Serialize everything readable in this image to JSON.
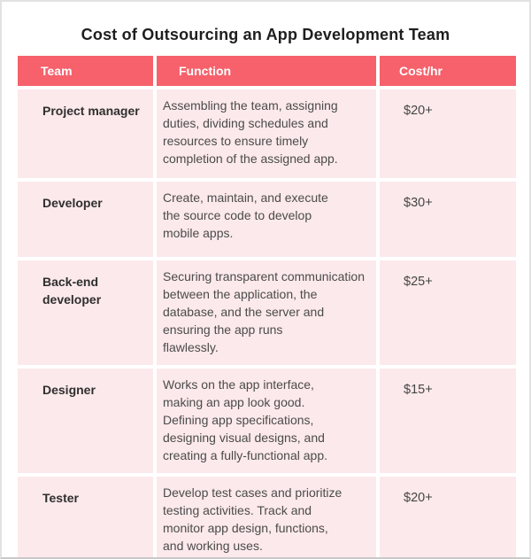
{
  "title": "Cost of Outsourcing an App Development Team",
  "colors": {
    "header_bg": "#f6616b",
    "header_text": "#ffffff",
    "row_bg": "#fce9eb",
    "title_text": "#1e1e1e",
    "body_text": "#4b4b4b",
    "team_text": "#2f2f2f",
    "page_border": "#e2e2e2"
  },
  "table": {
    "headers": [
      "Team",
      "Function",
      "Cost/hr"
    ],
    "rows": [
      {
        "team": "Project manager",
        "function": "Assembling the team, assigning\nduties, dividing schedules and\nresources to ensure timely\ncompletion of the assigned app.",
        "cost": "$20+"
      },
      {
        "team": "Developer",
        "function": "Create, maintain, and execute\nthe source code to develop\nmobile apps.",
        "cost": "$30+"
      },
      {
        "team": "Back-end\ndeveloper",
        "function": "Securing transparent communication\nbetween the application, the\ndatabase, and the server and\nensuring the app runs\nflawlessly.",
        "cost": "$25+"
      },
      {
        "team": "Designer",
        "function": "Works on the app interface,\nmaking an app look good.\nDefining app specifications,\ndesigning visual designs, and\ncreating a fully-functional app.",
        "cost": "$15+"
      },
      {
        "team": "Tester",
        "function": "Develop test cases and prioritize\ntesting activities. Track and\nmonitor app design, functions,\nand working uses.",
        "cost": "$20+"
      }
    ]
  }
}
